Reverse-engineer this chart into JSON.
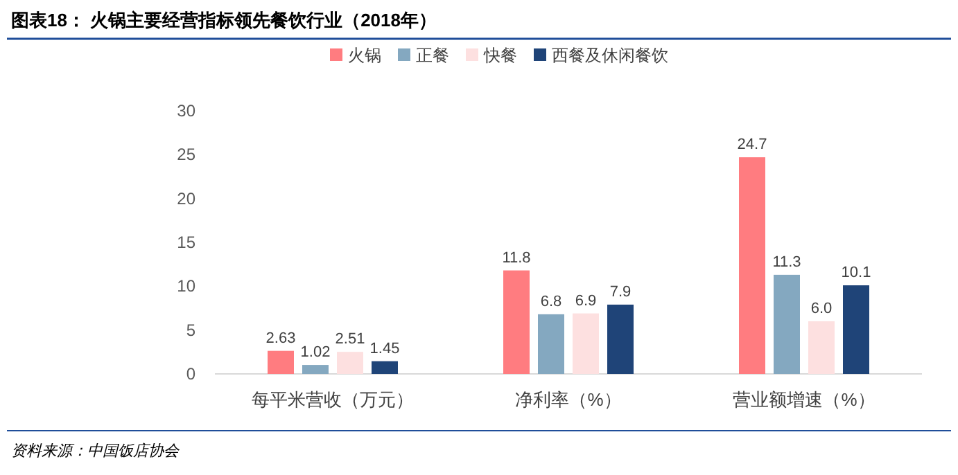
{
  "chart_data": {
    "type": "bar",
    "title": "图表18：  火锅主要经营指标领先餐饮行业（2018年）",
    "annotations": [
      "资料来源：中国饭店协会"
    ],
    "categories": [
      "每平米营收（万元）",
      "净利率（%）",
      "营业额增速（%）"
    ],
    "series": [
      {
        "name": "火锅",
        "color": "#ff7c80",
        "values": [
          2.63,
          11.8,
          24.7
        ],
        "value_labels": [
          "2.63",
          "11.8",
          "24.7"
        ]
      },
      {
        "name": "正餐",
        "color": "#84a8c0",
        "values": [
          1.02,
          6.8,
          11.3
        ],
        "value_labels": [
          "1.02",
          "6.8",
          "11.3"
        ]
      },
      {
        "name": "快餐",
        "color": "#fde0e0",
        "values": [
          2.51,
          6.9,
          6.0
        ],
        "value_labels": [
          "2.51",
          "6.9",
          "6.0"
        ]
      },
      {
        "name": "西餐及休闲餐饮",
        "color": "#1f4478",
        "values": [
          1.45,
          7.9,
          10.1
        ],
        "value_labels": [
          "1.45",
          "7.9",
          "10.1"
        ]
      }
    ],
    "ylim": [
      0,
      30
    ],
    "yticks": [
      0,
      5,
      10,
      15,
      20,
      25,
      30
    ],
    "legend": "top"
  }
}
